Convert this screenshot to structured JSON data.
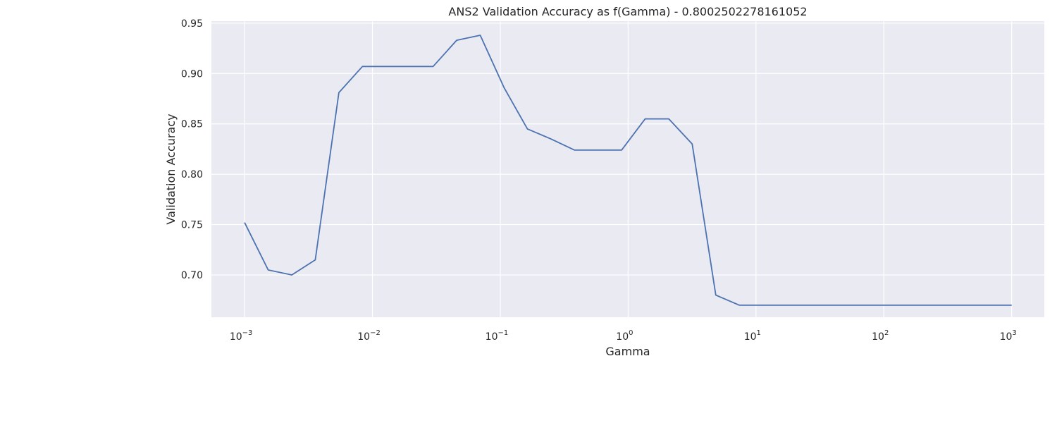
{
  "chart_data": {
    "type": "line",
    "title": "ANS2 Validation Accuracy as f(Gamma) - 0.8002502278161052",
    "xlabel": "Gamma",
    "ylabel": "Validation Accuracy",
    "xscale": "log",
    "xlim": [
      0.00055,
      1800
    ],
    "ylim": [
      0.658,
      0.952
    ],
    "grid": true,
    "x_ticks": [
      {
        "value": 0.001,
        "base": "10",
        "exp": "−3"
      },
      {
        "value": 0.01,
        "base": "10",
        "exp": "−2"
      },
      {
        "value": 0.1,
        "base": "10",
        "exp": "−1"
      },
      {
        "value": 1,
        "base": "10",
        "exp": "0"
      },
      {
        "value": 10,
        "base": "10",
        "exp": "1"
      },
      {
        "value": 100,
        "base": "10",
        "exp": "2"
      },
      {
        "value": 1000,
        "base": "10",
        "exp": "3"
      }
    ],
    "y_ticks": [
      {
        "value": 0.7,
        "label": "0.70"
      },
      {
        "value": 0.75,
        "label": "0.75"
      },
      {
        "value": 0.8,
        "label": "0.80"
      },
      {
        "value": 0.85,
        "label": "0.85"
      },
      {
        "value": 0.9,
        "label": "0.90"
      },
      {
        "value": 0.95,
        "label": "0.95"
      }
    ],
    "series": [
      {
        "color": "#4c72b0",
        "x": [
          0.001,
          0.00153,
          0.00234,
          0.00357,
          0.00546,
          0.00835,
          0.0128,
          0.0195,
          0.0298,
          0.0456,
          0.0697,
          0.107,
          0.163,
          0.249,
          0.381,
          0.582,
          0.889,
          1.36,
          2.08,
          3.17,
          4.85,
          7.42,
          11.3,
          17.3,
          26.5,
          40.5,
          61.9,
          94.6,
          145,
          221,
          338,
          517,
          790,
          1000
        ],
        "y": [
          0.752,
          0.705,
          0.7,
          0.715,
          0.881,
          0.907,
          0.907,
          0.907,
          0.907,
          0.933,
          0.938,
          0.886,
          0.845,
          0.835,
          0.824,
          0.824,
          0.824,
          0.855,
          0.855,
          0.83,
          0.68,
          0.67,
          0.67,
          0.67,
          0.67,
          0.67,
          0.67,
          0.67,
          0.67,
          0.67,
          0.67,
          0.67,
          0.67,
          0.67
        ]
      }
    ]
  }
}
